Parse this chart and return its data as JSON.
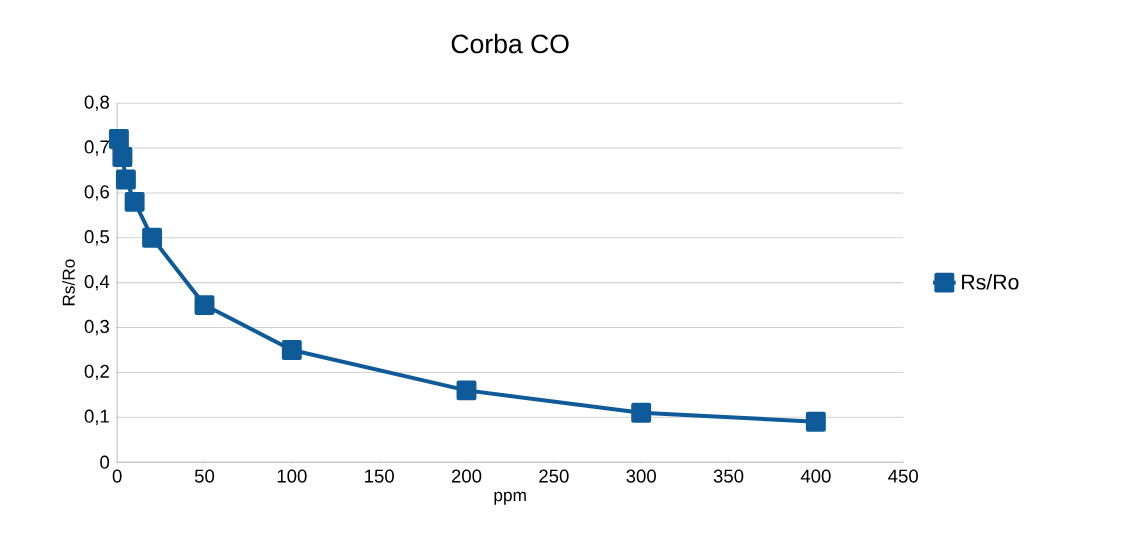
{
  "chart_data": {
    "type": "line",
    "title": "Corba CO",
    "xlabel": "ppm",
    "ylabel": "Rs/Ro",
    "x": [
      1,
      3,
      5,
      10,
      20,
      50,
      100,
      200,
      300,
      400
    ],
    "series": [
      {
        "name": "Rs/Ro",
        "color": "#0f5a98",
        "values": [
          0.72,
          0.68,
          0.63,
          0.58,
          0.5,
          0.35,
          0.25,
          0.16,
          0.11,
          0.09
        ]
      }
    ],
    "xlim": [
      0,
      450
    ],
    "xticks": [
      0,
      50,
      100,
      150,
      200,
      250,
      300,
      350,
      400,
      450
    ],
    "ylim": [
      0,
      0.8
    ],
    "yticks": [
      0,
      {
        "value": 0.1,
        "label": "0,1"
      },
      {
        "value": 0.2,
        "label": "0,2"
      },
      {
        "value": 0.3,
        "label": "0,3"
      },
      {
        "value": 0.4,
        "label": "0,4"
      },
      {
        "value": 0.5,
        "label": "0,5"
      },
      {
        "value": 0.6,
        "label": "0,6"
      },
      {
        "value": 0.7,
        "label": "0,7"
      },
      {
        "value": 0.8,
        "label": "0,8"
      }
    ],
    "grid": "y",
    "legend": "right",
    "marker": "square",
    "line_style": "solid"
  }
}
